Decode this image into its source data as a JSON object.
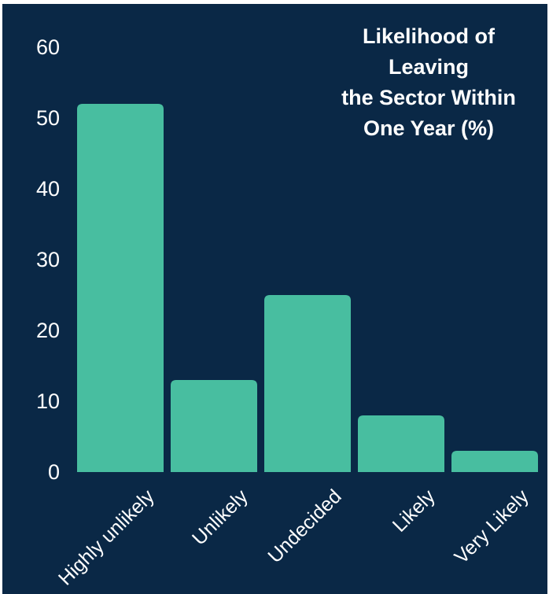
{
  "chart_data": {
    "type": "bar",
    "title_lines": [
      "Likelihood of",
      "Leaving",
      "the Sector Within",
      "One Year (%)"
    ],
    "categories": [
      "Highly unlikely",
      "Unlikely",
      "Undecided",
      "Likely",
      "Very Likely"
    ],
    "values": [
      52,
      13,
      25,
      8,
      3
    ],
    "yticks": [
      0,
      10,
      20,
      30,
      40,
      50,
      60
    ],
    "ylim": [
      0,
      60
    ],
    "xlabel": "",
    "ylabel": "",
    "grid": false,
    "legend": "none"
  },
  "colors": {
    "background": "#0a2846",
    "bar": "#48bea0",
    "text": "#ffffff"
  }
}
